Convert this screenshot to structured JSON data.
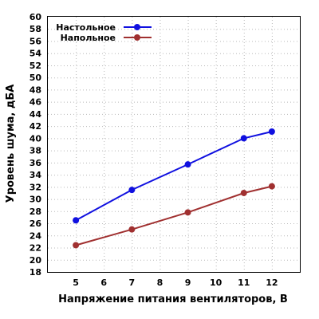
{
  "chart_data": {
    "type": "line",
    "xlabel": "Напряжение питания вентиляторов, В",
    "ylabel": "Уровень шума, дБА",
    "x_ticks": [
      5,
      6,
      7,
      8,
      9,
      10,
      11,
      12
    ],
    "xlim": [
      4,
      13
    ],
    "ylim": [
      18,
      60
    ],
    "y_ticks": [
      18,
      20,
      22,
      24,
      26,
      28,
      30,
      32,
      34,
      36,
      38,
      40,
      42,
      44,
      46,
      48,
      50,
      52,
      54,
      56,
      58,
      60
    ],
    "grid": true,
    "legend_position": "top-left",
    "series": [
      {
        "name": "Настольное",
        "color": "#1010e0",
        "points": [
          [
            5,
            26.5
          ],
          [
            7,
            31.5
          ],
          [
            9,
            35.7
          ],
          [
            11,
            40.0
          ],
          [
            12,
            41.1
          ]
        ]
      },
      {
        "name": "Напольное",
        "color": "#a03030",
        "points": [
          [
            5,
            22.4
          ],
          [
            7,
            25.0
          ],
          [
            9,
            27.8
          ],
          [
            11,
            31.0
          ],
          [
            12,
            32.1
          ]
        ]
      }
    ]
  }
}
